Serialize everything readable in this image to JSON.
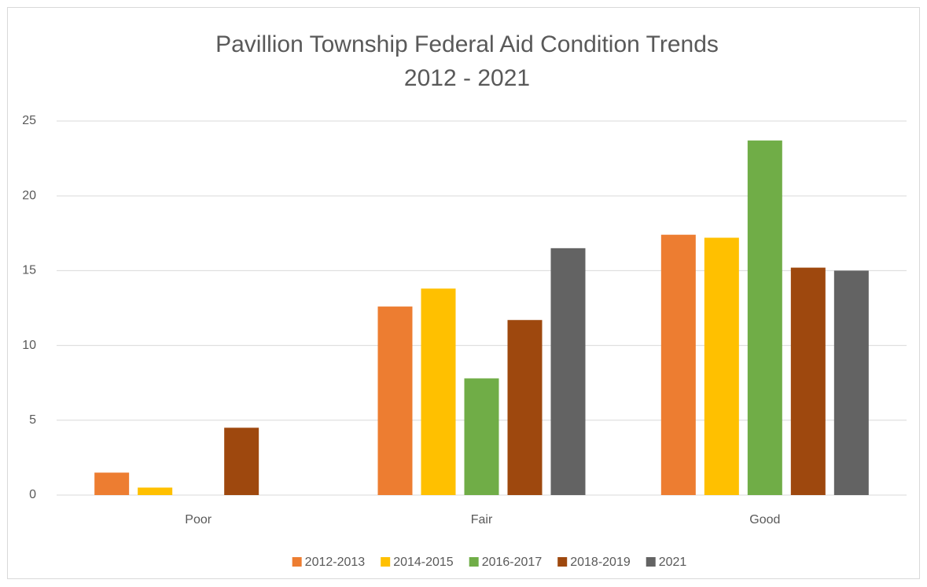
{
  "chart_data": {
    "type": "bar",
    "title": "Pavillion Township Federal Aid Condition Trends",
    "subtitle": "2012 - 2021",
    "categories": [
      "Poor",
      "Fair",
      "Good"
    ],
    "series": [
      {
        "name": "2012-2013",
        "color": "#ed7d31",
        "values": [
          1.5,
          12.6,
          17.4
        ]
      },
      {
        "name": "2014-2015",
        "color": "#ffc000",
        "values": [
          0.5,
          13.8,
          17.2
        ]
      },
      {
        "name": "2016-2017",
        "color": "#70ad47",
        "values": [
          0,
          7.8,
          23.7
        ]
      },
      {
        "name": "2018-2019",
        "color": "#9e480e",
        "values": [
          4.5,
          11.7,
          15.2
        ]
      },
      {
        "name": "2021",
        "color": "#636363",
        "values": [
          0,
          16.5,
          15.0
        ]
      }
    ],
    "ylim": [
      0,
      25
    ],
    "yticks": [
      0,
      5,
      10,
      15,
      20,
      25
    ],
    "grid": true,
    "legend": "bottom"
  }
}
